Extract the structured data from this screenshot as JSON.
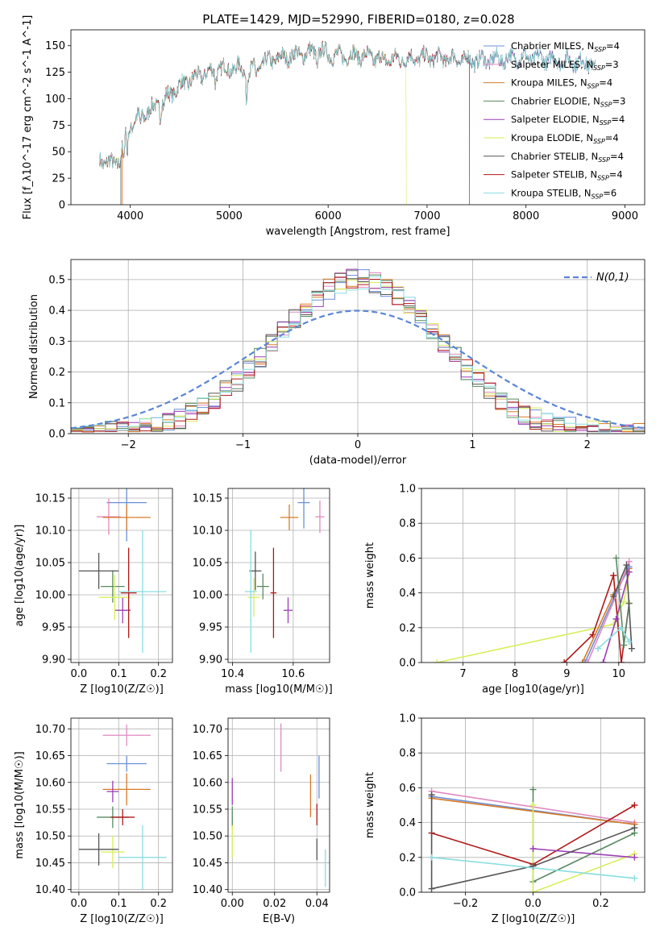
{
  "figure": {
    "title": "PLATE=1429, MJD=52990, FIBERID=0180, z=0.028",
    "colors": {
      "Chabrier MILES": "#6a8fd8",
      "Salpeter MILES": "#e08ac0",
      "Kroupa MILES": "#d97a25",
      "Chabrier ELODIE": "#5a8a60",
      "Salpeter ELODIE": "#9b3fb5",
      "Kroupa ELODIE": "#d8ee5a",
      "Chabrier STELIB": "#555555",
      "Salpeter STELIB": "#b01818",
      "Kroupa STELIB": "#88dde0"
    }
  },
  "chart_data": [
    {
      "id": "spectrum",
      "type": "line",
      "xlabel": "wavelength [Angstrom, rest frame]",
      "ylabel": "Flux [f_λ10^-17 erg cm^-2 s^-1 A^-1]",
      "xlim": [
        3400,
        9200
      ],
      "ylim": [
        0,
        165
      ],
      "xticks": [
        4000,
        5000,
        6000,
        7000,
        8000,
        9000
      ],
      "yticks": [
        0,
        25,
        50,
        75,
        100,
        125,
        150
      ],
      "grid": false,
      "legend_position": "right",
      "legend": [
        {
          "model": "Chabrier MILES",
          "nssp": "4"
        },
        {
          "model": "Salpeter MILES",
          "nssp": "3"
        },
        {
          "model": "Kroupa MILES",
          "nssp": "4"
        },
        {
          "model": "Chabrier ELODIE",
          "nssp": "3"
        },
        {
          "model": "Salpeter ELODIE",
          "nssp": "4"
        },
        {
          "model": "Kroupa ELODIE",
          "nssp": "4"
        },
        {
          "model": "Chabrier STELIB",
          "nssp": "4"
        },
        {
          "model": "Salpeter STELIB",
          "nssp": "4"
        },
        {
          "model": "Kroupa STELIB",
          "nssp": "6"
        }
      ],
      "continuum": {
        "x": [
          3690,
          3760,
          3900,
          3950,
          4050,
          4250,
          4350,
          4500,
          4700,
          4900,
          5100,
          5200,
          5400,
          5600,
          5900,
          6100,
          6300,
          6500,
          6700,
          7000,
          7500,
          8000,
          8300,
          8700
        ],
        "y": [
          45,
          38,
          42,
          68,
          80,
          92,
          100,
          112,
          122,
          128,
          129,
          125,
          136,
          140,
          145,
          140,
          141,
          138,
          137,
          139,
          136,
          139,
          137,
          133
        ]
      },
      "truncations": [
        {
          "model": "Kroupa MILES",
          "end": 7430
        },
        {
          "model": "Salpeter STELIB",
          "end": 7430
        },
        {
          "model": "Kroupa ELODIE",
          "end": 6790
        }
      ],
      "start_drops": [
        3905,
        3920
      ]
    },
    {
      "id": "residuals",
      "type": "line",
      "xlabel": "(data-model)/error",
      "ylabel": "Normed distribution",
      "xlim": [
        -2.5,
        2.5
      ],
      "ylim": [
        0,
        0.565
      ],
      "xticks": [
        -2,
        -1,
        0,
        1,
        2
      ],
      "yticks": [
        0.0,
        0.1,
        0.2,
        0.3,
        0.4,
        0.5
      ],
      "grid": true,
      "gaussian_label": "N(0,1)",
      "gaussian_color": "#5b86d6",
      "legend_position": "top-right",
      "histogram_peak": 0.5
    },
    {
      "id": "age_vs_Z",
      "type": "scatter",
      "xlabel": "Z [log10(Z/Z☉)]",
      "ylabel": "age [log10(age/yr)]",
      "xlim": [
        -0.02,
        0.235
      ],
      "ylim": [
        9.895,
        10.165
      ],
      "xticks": [
        0.0,
        0.1,
        0.2
      ],
      "yticks": [
        9.9,
        9.95,
        10.0,
        10.05,
        10.1,
        10.15
      ],
      "grid": true,
      "points": [
        {
          "model": "Chabrier MILES",
          "x": 0.12,
          "y": 10.143,
          "ex": 0.05,
          "ey": 0.06
        },
        {
          "model": "Salpeter MILES",
          "x": 0.075,
          "y": 10.121,
          "ex": 0.03,
          "ey": 0.028
        },
        {
          "model": "Kroupa MILES",
          "x": 0.12,
          "y": 10.12,
          "ex": 0.06,
          "ey": 0.02
        },
        {
          "model": "Chabrier ELODIE",
          "x": 0.085,
          "y": 10.013,
          "ex": 0.03,
          "ey": 0.025
        },
        {
          "model": "Salpeter ELODIE",
          "x": 0.11,
          "y": 9.976,
          "ex": 0.02,
          "ey": 0.02
        },
        {
          "model": "Kroupa ELODIE",
          "x": 0.09,
          "y": 9.996,
          "ex": 0.04,
          "ey": 0.035
        },
        {
          "model": "Chabrier STELIB",
          "x": 0.05,
          "y": 10.037,
          "ex": 0.05,
          "ey": 0.028
        },
        {
          "model": "Salpeter STELIB",
          "x": 0.125,
          "y": 10.003,
          "ex": 0.02,
          "ey": 0.07
        },
        {
          "model": "Kroupa STELIB",
          "x": 0.16,
          "y": 10.005,
          "ex": 0.06,
          "ey": 0.095
        }
      ]
    },
    {
      "id": "age_vs_mass",
      "type": "scatter",
      "xlabel": "mass [log10(M/M☉)]",
      "ylabel": "",
      "xlim": [
        10.385,
        10.72
      ],
      "ylim": [
        9.895,
        10.165
      ],
      "xticks": [
        10.4,
        10.6
      ],
      "yticks": [
        9.9,
        9.95,
        10.0,
        10.05,
        10.1,
        10.15
      ],
      "grid": true,
      "points": [
        {
          "model": "Chabrier MILES",
          "x": 10.635,
          "y": 10.143,
          "ex": 0.02,
          "ey": 0.04
        },
        {
          "model": "Salpeter MILES",
          "x": 10.688,
          "y": 10.121,
          "ex": 0.015,
          "ey": 0.025
        },
        {
          "model": "Kroupa MILES",
          "x": 10.587,
          "y": 10.12,
          "ex": 0.03,
          "ey": 0.02
        },
        {
          "model": "Chabrier ELODIE",
          "x": 10.5,
          "y": 10.013,
          "ex": 0.02,
          "ey": 0.02
        },
        {
          "model": "Salpeter ELODIE",
          "x": 10.583,
          "y": 9.976,
          "ex": 0.015,
          "ey": 0.02
        },
        {
          "model": "Kroupa ELODIE",
          "x": 10.47,
          "y": 9.996,
          "ex": 0.02,
          "ey": 0.03
        },
        {
          "model": "Chabrier STELIB",
          "x": 10.475,
          "y": 10.037,
          "ex": 0.02,
          "ey": 0.03
        },
        {
          "model": "Salpeter STELIB",
          "x": 10.535,
          "y": 10.003,
          "ex": 0.01,
          "ey": 0.07
        },
        {
          "model": "Kroupa STELIB",
          "x": 10.46,
          "y": 10.005,
          "ex": 0.02,
          "ey": 0.095
        }
      ]
    },
    {
      "id": "weight_vs_age",
      "type": "line",
      "xlabel": "age [log10(age/yr)]",
      "ylabel": "mass weight",
      "xlim": [
        6.2,
        10.5
      ],
      "ylim": [
        0,
        1.0
      ],
      "xticks": [
        7,
        8,
        9,
        10
      ],
      "yticks": [
        0.0,
        0.2,
        0.4,
        0.6,
        0.8,
        1.0
      ],
      "grid": true,
      "series": [
        {
          "model": "Kroupa ELODIE",
          "x": [
            6.5,
            9.9,
            10.1,
            10.2
          ],
          "y": [
            0.0,
            0.22,
            0.35,
            0.52
          ]
        },
        {
          "model": "Salpeter STELIB",
          "x": [
            8.95,
            9.5,
            9.9,
            10.05,
            10.2
          ],
          "y": [
            0.0,
            0.16,
            0.5,
            0.0,
            0.34
          ]
        },
        {
          "model": "Kroupa MILES",
          "x": [
            9.3,
            9.9,
            10.2
          ],
          "y": [
            0.0,
            0.39,
            0.54
          ]
        },
        {
          "model": "Chabrier MILES",
          "x": [
            9.35,
            9.95,
            10.2
          ],
          "y": [
            0.0,
            0.4,
            0.55
          ]
        },
        {
          "model": "Salpeter MILES",
          "x": [
            9.4,
            10.0,
            10.2
          ],
          "y": [
            0.0,
            0.42,
            0.58
          ]
        },
        {
          "model": "Salpeter ELODIE",
          "x": [
            9.7,
            9.95,
            10.2
          ],
          "y": [
            0.0,
            0.25,
            0.52
          ]
        },
        {
          "model": "Chabrier ELODIE",
          "x": [
            9.95,
            10.1,
            10.2
          ],
          "y": [
            0.6,
            0.1,
            0.34
          ]
        },
        {
          "model": "Chabrier STELIB",
          "x": [
            9.9,
            10.15,
            10.25
          ],
          "y": [
            0.38,
            0.56,
            0.08
          ]
        },
        {
          "model": "Kroupa STELIB",
          "x": [
            9.6,
            10.05,
            10.2
          ],
          "y": [
            0.08,
            0.2,
            0.12
          ]
        }
      ]
    },
    {
      "id": "mass_vs_Z",
      "type": "scatter",
      "xlabel": "Z [log10(Z/Z☉)]",
      "ylabel": "mass [log10(M/M☉)]",
      "xlim": [
        -0.02,
        0.235
      ],
      "ylim": [
        10.395,
        10.72
      ],
      "xticks": [
        0.0,
        0.1,
        0.2
      ],
      "yticks": [
        10.4,
        10.45,
        10.5,
        10.55,
        10.6,
        10.65,
        10.7
      ],
      "grid": true,
      "points": [
        {
          "model": "Chabrier MILES",
          "x": 0.12,
          "y": 10.635,
          "ex": 0.05,
          "ey": 0.015
        },
        {
          "model": "Salpeter MILES",
          "x": 0.12,
          "y": 10.688,
          "ex": 0.06,
          "ey": 0.02
        },
        {
          "model": "Kroupa MILES",
          "x": 0.12,
          "y": 10.587,
          "ex": 0.06,
          "ey": 0.03
        },
        {
          "model": "Chabrier ELODIE",
          "x": 0.085,
          "y": 10.535,
          "ex": 0.04,
          "ey": 0.02
        },
        {
          "model": "Salpeter ELODIE",
          "x": 0.085,
          "y": 10.583,
          "ex": 0.015,
          "ey": 0.02
        },
        {
          "model": "Kroupa ELODIE",
          "x": 0.085,
          "y": 10.47,
          "ex": 0.03,
          "ey": 0.03
        },
        {
          "model": "Chabrier STELIB",
          "x": 0.05,
          "y": 10.475,
          "ex": 0.05,
          "ey": 0.03
        },
        {
          "model": "Salpeter STELIB",
          "x": 0.11,
          "y": 10.535,
          "ex": 0.03,
          "ey": 0.015
        },
        {
          "model": "Kroupa STELIB",
          "x": 0.16,
          "y": 10.46,
          "ex": 0.06,
          "ey": 0.06
        }
      ]
    },
    {
      "id": "mass_vs_ebv",
      "type": "scatter",
      "xlabel": "E(B-V)",
      "ylabel": "",
      "xlim": [
        -0.002,
        0.046
      ],
      "ylim": [
        10.395,
        10.72
      ],
      "xticks": [
        0.0,
        0.02,
        0.04
      ],
      "yticks": [
        10.4,
        10.45,
        10.5,
        10.55,
        10.6,
        10.65,
        10.7
      ],
      "grid": true,
      "points": [
        {
          "model": "Chabrier MILES",
          "x": 0.041,
          "y": 10.61,
          "ex": 0.0,
          "ey": 0.04
        },
        {
          "model": "Salpeter MILES",
          "x": 0.023,
          "y": 10.665,
          "ex": 0.0,
          "ey": 0.045
        },
        {
          "model": "Kroupa MILES",
          "x": 0.037,
          "y": 10.575,
          "ex": 0.0,
          "ey": 0.04
        },
        {
          "model": "Chabrier ELODIE",
          "x": 0.0,
          "y": 10.535,
          "ex": 0.0,
          "ey": 0.02
        },
        {
          "model": "Salpeter ELODIE",
          "x": 0.0,
          "y": 10.583,
          "ex": 0.0,
          "ey": 0.025
        },
        {
          "model": "Kroupa ELODIE",
          "x": 0.0,
          "y": 10.49,
          "ex": 0.0,
          "ey": 0.03
        },
        {
          "model": "Chabrier STELIB",
          "x": 0.04,
          "y": 10.475,
          "ex": 0.0,
          "ey": 0.02
        },
        {
          "model": "Salpeter STELIB",
          "x": 0.04,
          "y": 10.54,
          "ex": 0.0,
          "ey": 0.02
        },
        {
          "model": "Kroupa STELIB",
          "x": 0.044,
          "y": 10.44,
          "ex": 0.0,
          "ey": 0.035
        }
      ]
    },
    {
      "id": "weight_vs_Z",
      "type": "line",
      "xlabel": "Z [log10(Z/Z☉)]",
      "ylabel": "mass weight",
      "xlim": [
        -0.33,
        0.33
      ],
      "ylim": [
        0,
        1.0
      ],
      "xticks": [
        -0.2,
        0.0,
        0.2
      ],
      "yticks": [
        0.0,
        0.2,
        0.4,
        0.6,
        0.8,
        1.0
      ],
      "grid": true,
      "series": [
        {
          "model": "Salpeter MILES",
          "x": [
            -0.3,
            0.3
          ],
          "y": [
            0.58,
            0.4
          ]
        },
        {
          "model": "Chabrier MILES",
          "x": [
            -0.3,
            0.3
          ],
          "y": [
            0.55,
            0.39
          ]
        },
        {
          "model": "Kroupa MILES",
          "x": [
            -0.3,
            0.3
          ],
          "y": [
            0.54,
            0.39
          ]
        },
        {
          "model": "Salpeter STELIB",
          "x": [
            -0.3,
            0.0,
            0.3
          ],
          "y": [
            0.34,
            0.16,
            0.5
          ]
        },
        {
          "model": "Chabrier ELODIE",
          "x": [
            0.0,
            0.0,
            0.3
          ],
          "y": [
            0.59,
            0.06,
            0.34
          ]
        },
        {
          "model": "Kroupa ELODIE",
          "x": [
            0.0,
            0.0,
            0.3
          ],
          "y": [
            0.5,
            0.0,
            0.22
          ]
        },
        {
          "model": "Salpeter ELODIE",
          "x": [
            0.0,
            0.3
          ],
          "y": [
            0.25,
            0.2
          ]
        },
        {
          "model": "Chabrier STELIB",
          "x": [
            -0.3,
            -0.3,
            0.0,
            0.3
          ],
          "y": [
            0.56,
            0.02,
            0.15,
            0.37
          ]
        },
        {
          "model": "Kroupa STELIB",
          "x": [
            -0.3,
            0.3
          ],
          "y": [
            0.2,
            0.08
          ]
        }
      ]
    }
  ]
}
